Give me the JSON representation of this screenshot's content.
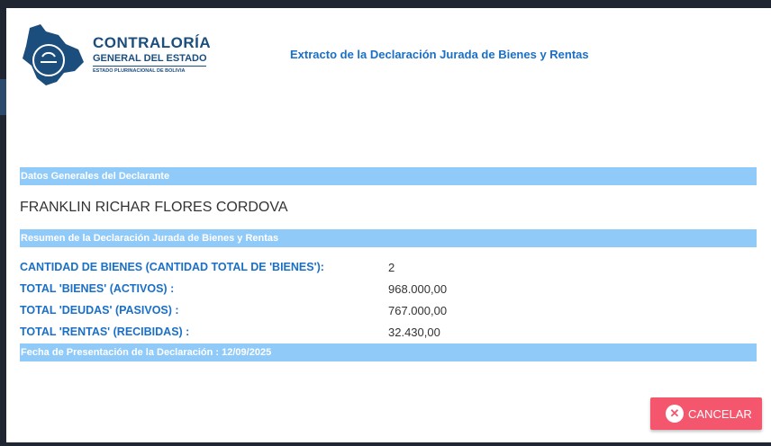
{
  "logo": {
    "line1": "CONTRALORÍA",
    "line2": "GENERAL DEL ESTADO",
    "line3": "ESTADO PLURINACIONAL DE BOLIVIA"
  },
  "title": "Extracto de la Declaración Jurada de Bienes y Rentas",
  "section_general": "Datos Generales del Declarante",
  "declarant_name": "FRANKLIN RICHAR FLORES CORDOVA",
  "section_summary": "Resumen de la Declaración Jurada de Bienes y Rentas",
  "summary": [
    {
      "label": "CANTIDAD DE BIENES (CANTIDAD TOTAL DE 'BIENES'):",
      "value": "2"
    },
    {
      "label": "TOTAL 'BIENES' (ACTIVOS) :",
      "value": "968.000,00"
    },
    {
      "label": "TOTAL 'DEUDAS' (PASIVOS) :",
      "value": "767.000,00"
    },
    {
      "label": "TOTAL 'RENTAS' (RECIBIDAS) :",
      "value": "32.430,00"
    }
  ],
  "presentation_date": "Fecha de Presentación de la Declaración : 12/09/2025",
  "cancel_label": "CANCELAR",
  "colors": {
    "accent": "#1a6fc7",
    "bar": "#90caf9",
    "cancel": "#f4566e",
    "logo": "#1b4d7d"
  }
}
